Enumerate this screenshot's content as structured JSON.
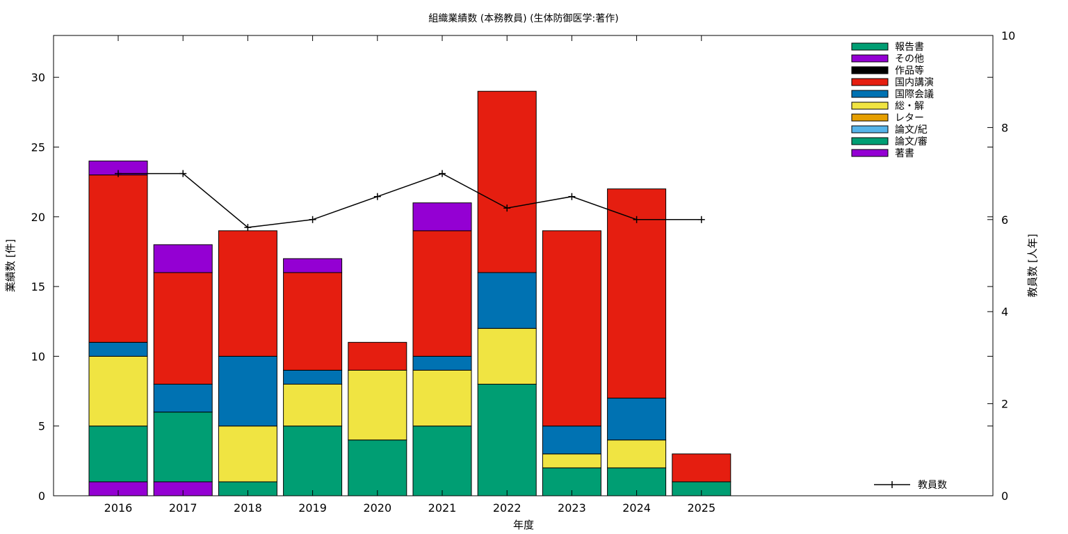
{
  "chart_data": {
    "type": "bar",
    "title": "組織業績数 (本務教員) (生体防御医学:著作)",
    "xlabel": "年度",
    "ylabel": "業績数 [件]",
    "y2label": "教員数 [人年]",
    "ylim": [
      0,
      33
    ],
    "y2lim": [
      0,
      10
    ],
    "yticks": [
      0,
      5,
      10,
      15,
      20,
      25,
      30
    ],
    "y2ticks": [
      0,
      2,
      4,
      6,
      8,
      10
    ],
    "categories": [
      "2016",
      "2017",
      "2018",
      "2019",
      "2020",
      "2021",
      "2022",
      "2023",
      "2024",
      "2025"
    ],
    "stack_order": [
      "著書",
      "論文/審",
      "論文/紀",
      "レター",
      "総・解",
      "国際会議",
      "国内講演",
      "作品等",
      "その他",
      "報告書"
    ],
    "legend_order": [
      "報告書",
      "その他",
      "作品等",
      "国内講演",
      "国際会議",
      "総・解",
      "レター",
      "論文/紀",
      "論文/審",
      "著書"
    ],
    "legend_position": "top-right",
    "series": [
      {
        "name": "著書",
        "color": "#9400d3",
        "values": [
          1,
          1,
          0,
          0,
          0,
          0,
          0,
          0,
          0,
          0
        ]
      },
      {
        "name": "論文/審",
        "color": "#009e73",
        "values": [
          4,
          5,
          1,
          5,
          4,
          5,
          8,
          2,
          2,
          1
        ]
      },
      {
        "name": "論文/紀",
        "color": "#56b4e9",
        "values": [
          0,
          0,
          0,
          0,
          0,
          0,
          0,
          0,
          0,
          0
        ]
      },
      {
        "name": "レター",
        "color": "#e69f00",
        "values": [
          0,
          0,
          0,
          0,
          0,
          0,
          0,
          0,
          0,
          0
        ]
      },
      {
        "name": "総・解",
        "color": "#f0e442",
        "values": [
          5,
          0,
          4,
          3,
          5,
          4,
          4,
          1,
          2,
          0
        ]
      },
      {
        "name": "国際会議",
        "color": "#0072b2",
        "values": [
          1,
          2,
          5,
          1,
          0,
          1,
          4,
          2,
          3,
          0
        ]
      },
      {
        "name": "国内講演",
        "color": "#e51e10",
        "values": [
          12,
          8,
          9,
          7,
          2,
          9,
          13,
          14,
          15,
          2
        ]
      },
      {
        "name": "作品等",
        "color": "#000000",
        "values": [
          0,
          0,
          0,
          0,
          0,
          0,
          0,
          0,
          0,
          0
        ]
      },
      {
        "name": "その他",
        "color": "#9400d3",
        "values": [
          1,
          2,
          0,
          1,
          0,
          2,
          0,
          0,
          0,
          0
        ]
      },
      {
        "name": "報告書",
        "color": "#009e73",
        "values": [
          0,
          0,
          0,
          0,
          0,
          0,
          0,
          0,
          0,
          0
        ]
      }
    ],
    "line_series": {
      "name": "教員数",
      "color": "#000000",
      "axis": "y2",
      "values": [
        7.0,
        7.0,
        5.83,
        6.0,
        6.5,
        7.0,
        6.25,
        6.5,
        6.0,
        6.0
      ]
    },
    "grid": false
  }
}
